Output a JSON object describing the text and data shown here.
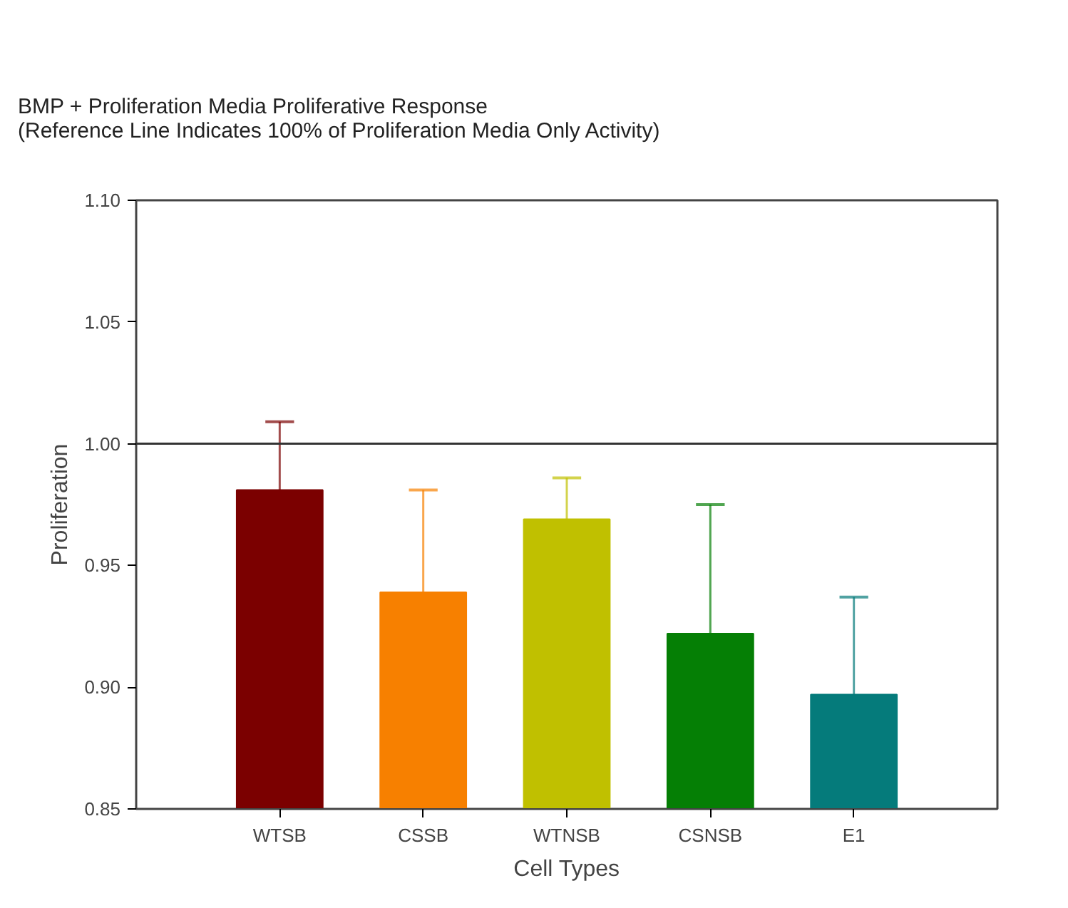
{
  "chart_data": {
    "type": "bar",
    "title": "BMP + Proliferation Media Proliferative Response\n(Reference Line Indicates 100% of Proliferation Media Only Activity)",
    "xlabel": "Cell Types",
    "ylabel": "Proliferation",
    "categories": [
      "WTSB",
      "CSSB",
      "WTNSB",
      "CSNSB",
      "E1"
    ],
    "values": [
      0.981,
      0.939,
      0.969,
      0.922,
      0.897
    ],
    "colors": [
      "#7b0000",
      "#f78000",
      "#c0c000",
      "#057f05",
      "#057b7b"
    ],
    "errors": [
      [
        0.981,
        1.009
      ],
      [
        0.939,
        0.981
      ],
      [
        0.969,
        0.986
      ],
      [
        0.922,
        0.975
      ],
      [
        0.897,
        0.937
      ]
    ],
    "ylim": [
      0.85,
      1.1
    ],
    "yticks": [
      {
        "value": 0.85,
        "label": "0.85"
      },
      {
        "value": 0.9,
        "label": "0.90"
      },
      {
        "value": 0.95,
        "label": "0.95"
      },
      {
        "value": 1.0,
        "label": "1.00"
      },
      {
        "value": 1.05,
        "label": "1.05"
      },
      {
        "value": 1.1,
        "label": "1.10"
      }
    ],
    "ref_lines": [
      {
        "axis": "y",
        "value": 1.0,
        "label": null
      }
    ],
    "grid": false
  }
}
